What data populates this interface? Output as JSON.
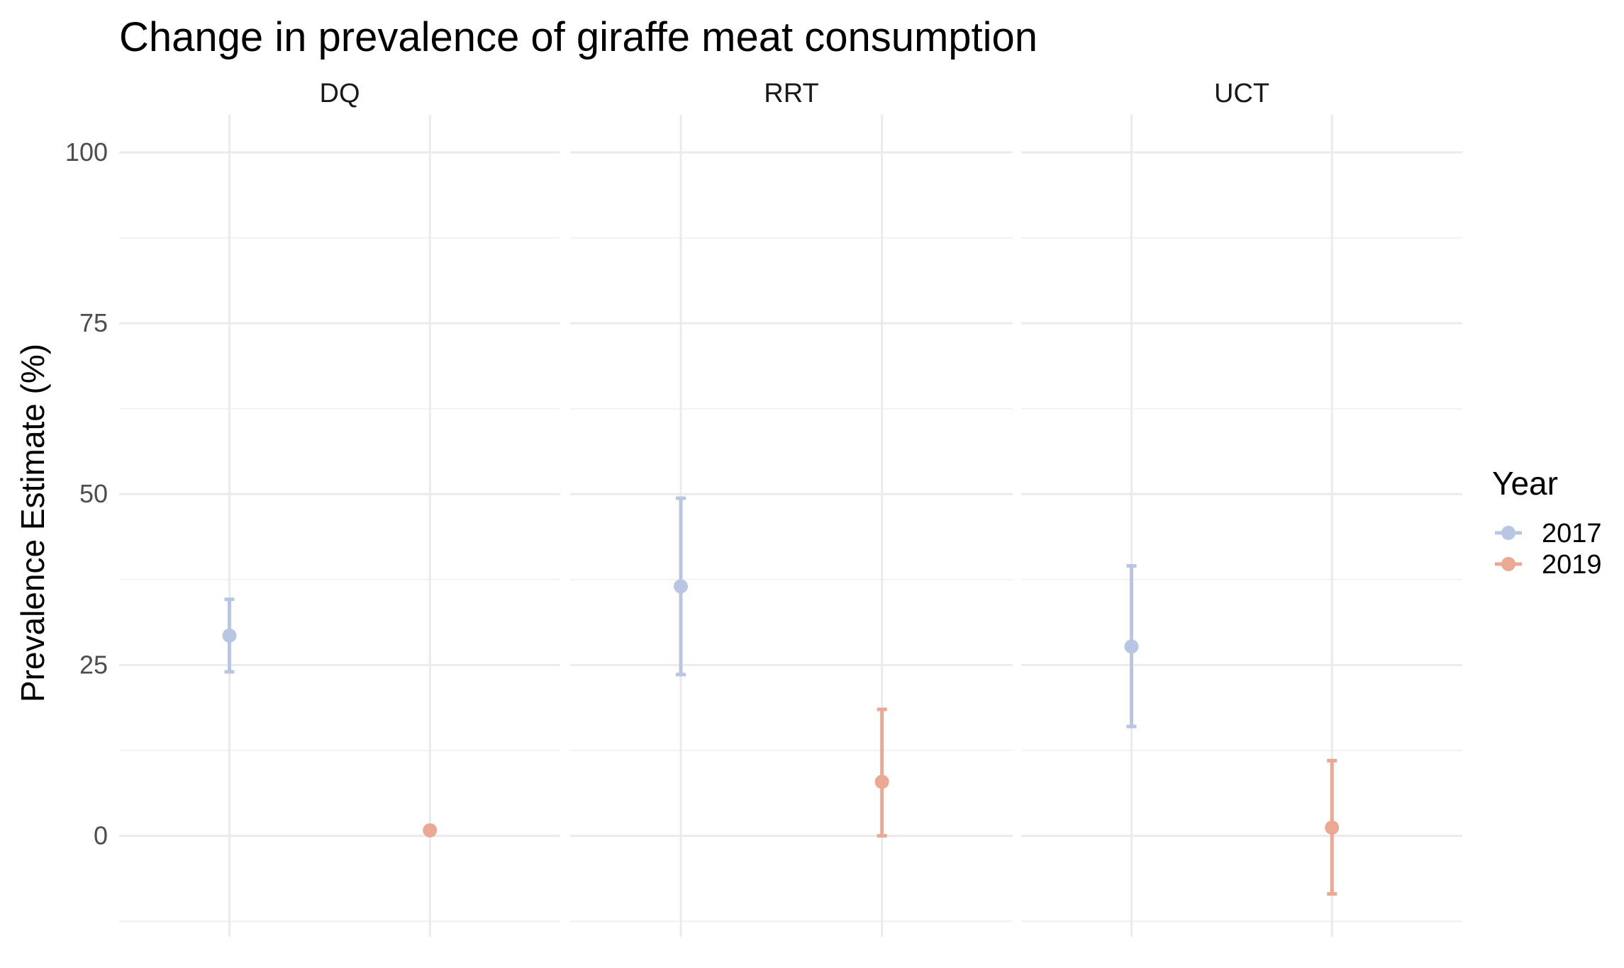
{
  "chart_data": {
    "type": "scatter",
    "title": "Change in prevalence of giraffe meat consumption",
    "ylabel": "Prevalence Estimate (%)",
    "xlabel": "",
    "ylim": [
      -12.5,
      105.5
    ],
    "yticks": [
      0,
      25,
      50,
      75,
      100
    ],
    "grid": true,
    "legend": {
      "title": "Year",
      "position": "right",
      "entries": [
        {
          "label": "2017",
          "color": "#b8c6e3"
        },
        {
          "label": "2019",
          "color": "#eba994"
        }
      ]
    },
    "facets": [
      {
        "label": "DQ",
        "points": [
          {
            "year": "2017",
            "estimate": 29.3,
            "lower": 24.0,
            "upper": 34.6
          },
          {
            "year": "2019",
            "estimate": 0.8,
            "lower": null,
            "upper": null
          }
        ]
      },
      {
        "label": "RRT",
        "points": [
          {
            "year": "2017",
            "estimate": 36.5,
            "lower": 23.6,
            "upper": 49.4
          },
          {
            "year": "2019",
            "estimate": 7.9,
            "lower": 0.0,
            "upper": 18.5
          }
        ]
      },
      {
        "label": "UCT",
        "points": [
          {
            "year": "2017",
            "estimate": 27.7,
            "lower": 16.0,
            "upper": 39.5
          },
          {
            "year": "2019",
            "estimate": 1.2,
            "lower": -8.5,
            "upper": 11.0
          }
        ]
      }
    ]
  }
}
